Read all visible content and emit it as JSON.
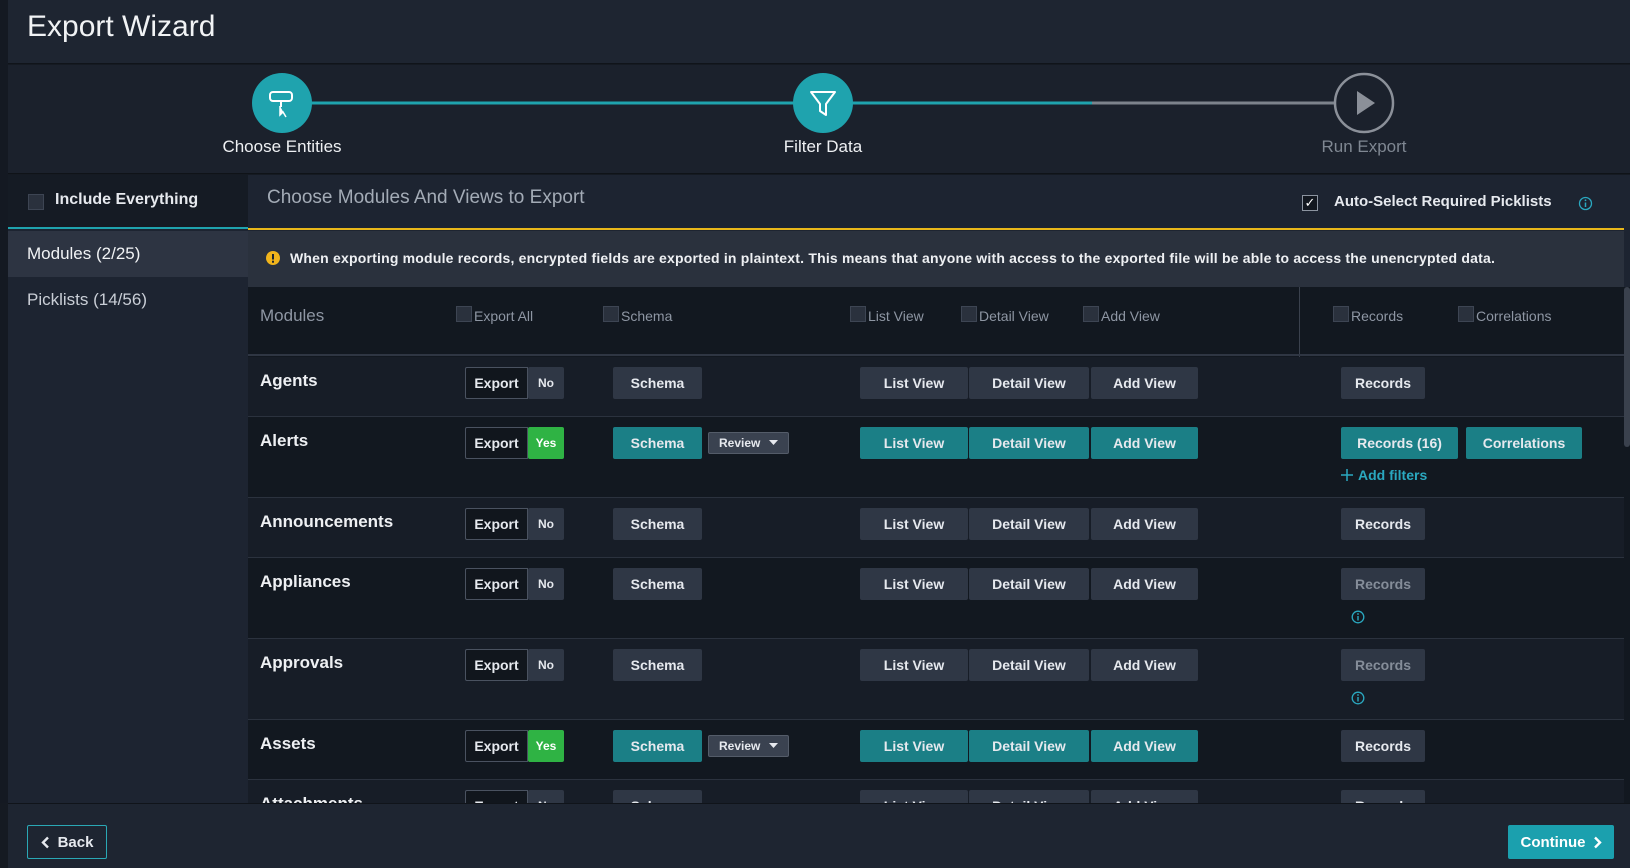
{
  "header": {
    "title": "Export Wizard"
  },
  "steps": [
    {
      "label": "Choose Entities",
      "complete": true
    },
    {
      "label": "Filter Data",
      "complete": true
    },
    {
      "label": "Run Export",
      "complete": false
    }
  ],
  "sidebar": {
    "include_everything": "Include Everything",
    "tabs": [
      "Modules (2/25)",
      "Picklists (14/56)"
    ],
    "active_tab": 0
  },
  "panel": {
    "title": "Choose Modules And Views to Export",
    "auto_select": "Auto-Select Required Picklists",
    "auto_select_checked": true,
    "warning": "When exporting module records, encrypted fields are exported in plaintext. This means that anyone with access to the exported file will be able to access the unencrypted data."
  },
  "table": {
    "headers": [
      "Modules",
      "Export All",
      "Schema",
      "List View",
      "Detail View",
      "Add View",
      "Records",
      "Correlations"
    ],
    "rows": [
      {
        "name": "Agents",
        "export": "Export",
        "toggle": "No",
        "schema": "Schema",
        "list_view": "List View",
        "detail_view": "Detail View",
        "add_view": "Add View",
        "records": "Records"
      },
      {
        "name": "Alerts",
        "export": "Export",
        "toggle": "Yes",
        "active": true,
        "schema": "Schema",
        "review": "Review",
        "list_view": "List View",
        "detail_view": "Detail View",
        "add_view": "Add View",
        "records": "Records (16)",
        "records_active": true,
        "correlations": "Correlations",
        "add_filters": "Add filters"
      },
      {
        "name": "Announcements",
        "export": "Export",
        "toggle": "No",
        "schema": "Schema",
        "list_view": "List View",
        "detail_view": "Detail View",
        "add_view": "Add View",
        "records": "Records"
      },
      {
        "name": "Appliances",
        "export": "Export",
        "toggle": "No",
        "schema": "Schema",
        "list_view": "List View",
        "detail_view": "Detail View",
        "add_view": "Add View",
        "records": "Records",
        "records_disabled": true
      },
      {
        "name": "Approvals",
        "export": "Export",
        "toggle": "No",
        "schema": "Schema",
        "list_view": "List View",
        "detail_view": "Detail View",
        "add_view": "Add View",
        "records": "Records",
        "records_disabled": true
      },
      {
        "name": "Assets",
        "export": "Export",
        "toggle": "Yes",
        "active": true,
        "schema": "Schema",
        "review": "Review",
        "list_view": "List View",
        "detail_view": "Detail View",
        "add_view": "Add View",
        "records": "Records"
      },
      {
        "name": "Attachments",
        "export": "Export",
        "toggle": "No",
        "schema": "Schema",
        "list_view": "List View",
        "detail_view": "Detail View",
        "add_view": "Add View",
        "records": "Records"
      }
    ]
  },
  "footer": {
    "back": "Back",
    "continue": "Continue"
  }
}
